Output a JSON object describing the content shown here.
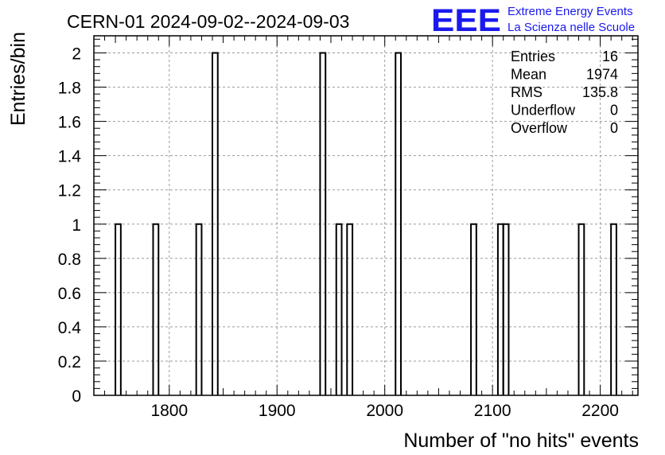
{
  "chart_data": {
    "type": "bar",
    "title": "CERN-01 2024-09-02--2024-09-03",
    "xlabel": "Number of \"no hits\" events",
    "ylabel": "Entries/bin",
    "xlim": [
      1730,
      2235
    ],
    "ylim": [
      0,
      2.1
    ],
    "bin_width": 5,
    "x_ticks": [
      1800,
      1900,
      2000,
      2100,
      2200
    ],
    "y_ticks": [
      0,
      0.2,
      0.4,
      0.6,
      0.8,
      1,
      1.2,
      1.4,
      1.6,
      1.8,
      2
    ],
    "y_tick_labels": [
      "0",
      "0.2",
      "0.4",
      "0.6",
      "0.8",
      "1",
      "1.2",
      "1.4",
      "1.6",
      "1.8",
      "2"
    ],
    "grid": true,
    "bins": [
      {
        "low": 1750,
        "value": 1
      },
      {
        "low": 1785,
        "value": 1
      },
      {
        "low": 1825,
        "value": 1
      },
      {
        "low": 1840,
        "value": 2
      },
      {
        "low": 1940,
        "value": 2
      },
      {
        "low": 1955,
        "value": 1
      },
      {
        "low": 1965,
        "value": 1
      },
      {
        "low": 2010,
        "value": 2
      },
      {
        "low": 2080,
        "value": 1
      },
      {
        "low": 2105,
        "value": 1
      },
      {
        "low": 2110,
        "value": 1
      },
      {
        "low": 2180,
        "value": 1
      },
      {
        "low": 2210,
        "value": 1
      }
    ],
    "stats": [
      {
        "label": "Entries",
        "value": "16"
      },
      {
        "label": "Mean",
        "value": "1974"
      },
      {
        "label": "RMS",
        "value": "135.8"
      },
      {
        "label": "Underflow",
        "value": "0"
      },
      {
        "label": "Overflow",
        "value": "0"
      }
    ]
  },
  "logo": {
    "mark": "EEE",
    "line1": "Extreme Energy Events",
    "line2": "La Scienza nelle Scuole",
    "color": "#1a1aee"
  },
  "colors": {
    "line": "#000000",
    "grid": "#9a9a9a"
  }
}
